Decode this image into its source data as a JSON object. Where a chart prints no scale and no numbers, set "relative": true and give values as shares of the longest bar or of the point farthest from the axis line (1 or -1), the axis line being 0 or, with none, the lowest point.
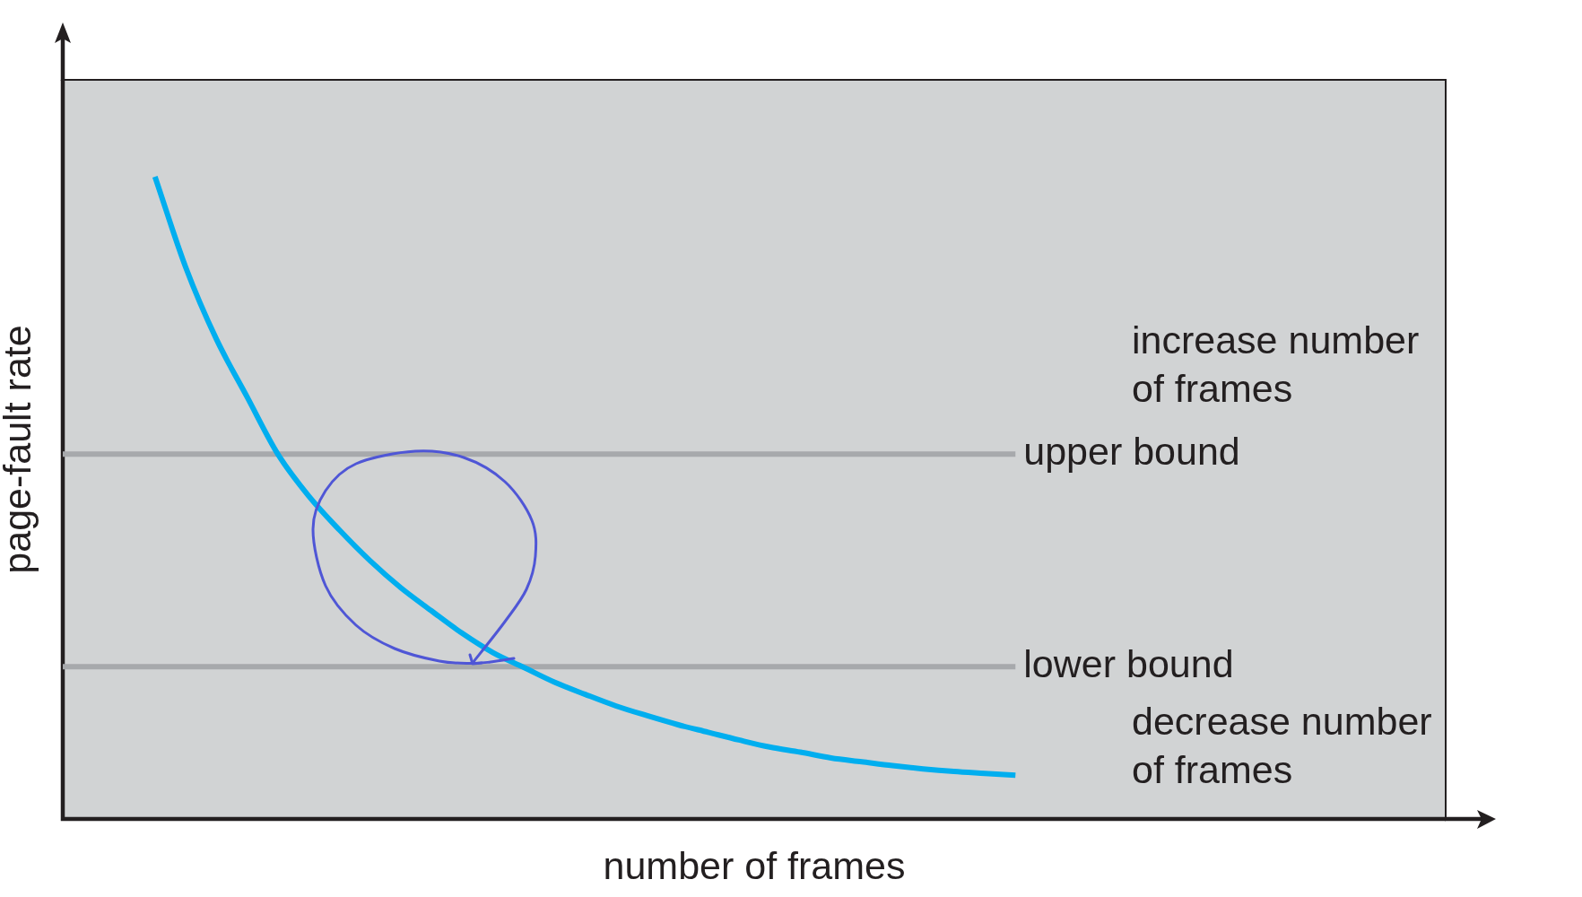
{
  "chart_data": {
    "type": "line",
    "xlabel": "number of frames",
    "ylabel": "page-fault rate",
    "relative": true,
    "marker": "none",
    "color": "#00aeef",
    "categories": [
      null,
      null,
      null,
      null,
      null,
      null,
      null,
      null,
      null,
      null,
      null,
      null,
      null,
      null,
      null,
      null,
      null,
      null,
      null,
      null,
      null,
      null,
      null,
      null,
      null,
      null,
      null,
      null,
      null,
      null,
      null,
      null,
      null,
      null,
      null,
      null,
      null,
      null,
      null,
      null,
      null,
      null,
      null,
      null,
      null,
      null
    ],
    "values": [
      null,
      null,
      null,
      1.0,
      0.859,
      0.747,
      0.657,
      0.568,
      0.503,
      0.45,
      0.402,
      0.36,
      0.324,
      0.289,
      0.259,
      0.236,
      0.213,
      0.194,
      0.176,
      0.161,
      0.147,
      0.135,
      0.123,
      0.112,
      0.104,
      0.095,
      0.089,
      0.083,
      0.078,
      0.074,
      0.071,
      0.068,
      null,
      null,
      null,
      null,
      null,
      null,
      null,
      null,
      null,
      null,
      null,
      null,
      null,
      null
    ],
    "ref_lines": [
      {
        "axis": "y",
        "value": 0.568,
        "label": "upper bound",
        "color": "#a7a9ac"
      },
      {
        "axis": "y",
        "value": 0.237,
        "label": "lower bound",
        "color": "#a7a9ac"
      }
    ],
    "annotations": [
      "increase number of frames",
      "decrease number of frames"
    ]
  }
}
